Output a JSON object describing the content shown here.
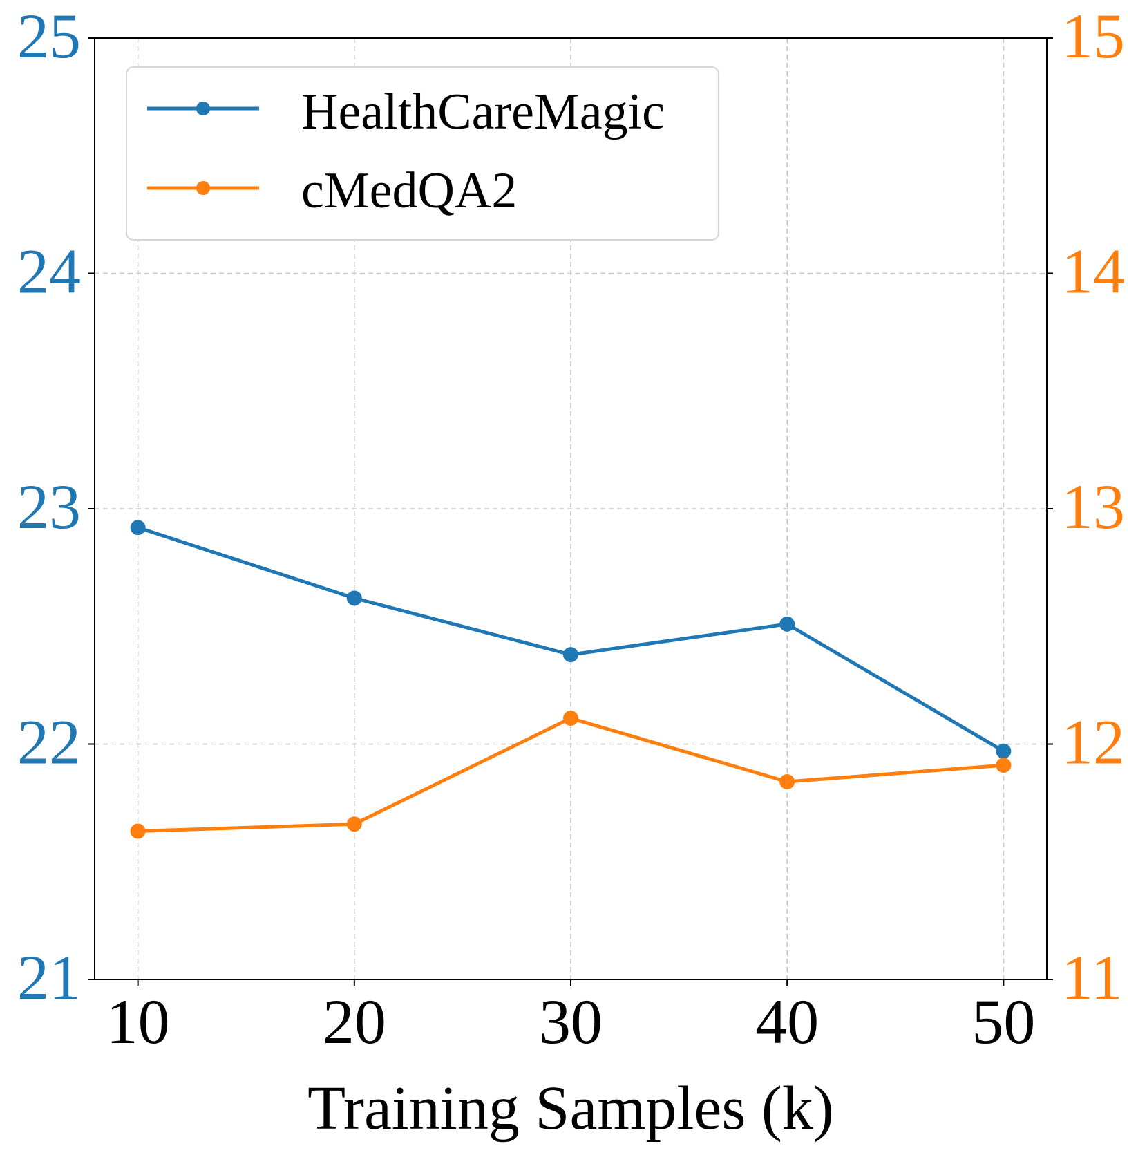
{
  "chart_data": {
    "type": "line",
    "title": "",
    "xlabel": "Training Samples (k)",
    "ylabel_left": "",
    "ylabel_right": "",
    "x": [
      10,
      20,
      30,
      40,
      50
    ],
    "xlim": [
      8,
      52
    ],
    "x_ticks": [
      "10",
      "20",
      "30",
      "40",
      "50"
    ],
    "ylim_left": [
      21,
      25
    ],
    "y_ticks_left": [
      "21",
      "22",
      "23",
      "24",
      "25"
    ],
    "ylim_right": [
      11,
      15
    ],
    "y_ticks_right": [
      "11",
      "12",
      "13",
      "14",
      "15"
    ],
    "grid": true,
    "legend_position": "top-left",
    "series": [
      {
        "name": "HealthCareMagic",
        "axis": "left",
        "color": "#1f77b4",
        "values": [
          22.92,
          22.62,
          22.38,
          22.51,
          21.97
        ]
      },
      {
        "name": "cMedQA2",
        "axis": "right",
        "color": "#ff7f0e",
        "values": [
          11.63,
          11.66,
          12.11,
          11.84,
          11.91
        ]
      }
    ]
  }
}
